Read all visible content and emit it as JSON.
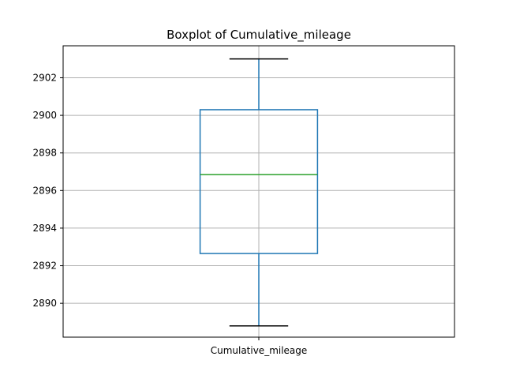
{
  "chart_data": {
    "type": "box",
    "title": "Boxplot of Cumulative_mileage",
    "xlabel": "",
    "ylabel": "",
    "categories": [
      "Cumulative_mileage"
    ],
    "boxes": [
      {
        "name": "Cumulative_mileage",
        "whisker_low": 2888.8,
        "q1": 2892.65,
        "median": 2896.85,
        "q3": 2900.3,
        "whisker_high": 2903.0
      }
    ],
    "ylim": [
      2888.2,
      2903.7
    ],
    "yticks": [
      2890,
      2892,
      2894,
      2896,
      2898,
      2900,
      2902
    ],
    "grid": true,
    "colors": {
      "box": "#1f77b4",
      "median": "#2ca02c",
      "whisker_cap": "#000000",
      "grid": "#b0b0b0"
    }
  }
}
